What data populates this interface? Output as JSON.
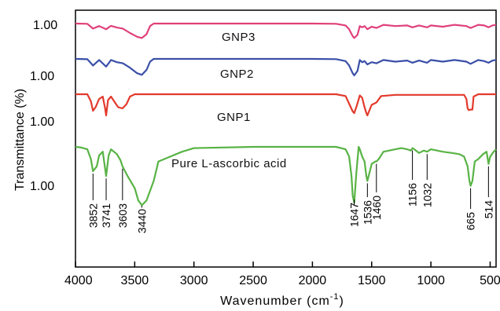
{
  "chart_data": {
    "type": "line",
    "xlabel": "Wavenumber (cm",
    "xlabel_sup": "-1",
    "xlabel_close": ")",
    "ylabel": "Transmittance (%)",
    "xlim": [
      4000,
      450
    ],
    "x_ticks": [
      4000,
      3500,
      3000,
      2500,
      2000,
      1500,
      1000,
      500
    ],
    "x_tick_labels": [
      "4000",
      "3500",
      "3000",
      "2500",
      "2000",
      "1500",
      "1000",
      "500"
    ],
    "y_level_labels": [
      "1.00",
      "1.00",
      "1.00",
      "1.00"
    ],
    "grid": false,
    "legend": "none",
    "series": [
      {
        "name": "GNP3",
        "color": "#e0407a",
        "x": [
          4000,
          3900,
          3852,
          3800,
          3741,
          3700,
          3650,
          3600,
          3540,
          3480,
          3440,
          3400,
          3370,
          3340,
          3300,
          3200,
          3000,
          2500,
          2000,
          1800,
          1720,
          1690,
          1660,
          1647,
          1620,
          1600,
          1580,
          1560,
          1536,
          1500,
          1460,
          1400,
          1300,
          1200,
          1156,
          1100,
          1032,
          1000,
          900,
          800,
          700,
          665,
          600,
          550,
          514,
          480,
          450
        ],
        "y": [
          0.0,
          -0.02,
          -0.4,
          -0.2,
          -0.45,
          -0.18,
          -0.32,
          -0.4,
          -0.75,
          -1.05,
          -1.15,
          -0.85,
          -0.2,
          0.0,
          0.0,
          0.0,
          0.0,
          0.0,
          0.0,
          -0.02,
          -0.15,
          -0.45,
          -1.0,
          -1.15,
          -0.9,
          -0.2,
          -0.3,
          -0.2,
          -0.45,
          -0.25,
          -0.35,
          -0.1,
          -0.2,
          -0.15,
          -0.3,
          -0.15,
          -0.3,
          -0.15,
          -0.25,
          -0.1,
          -0.2,
          -0.35,
          -0.1,
          -0.15,
          -0.3,
          -0.15,
          -0.1
        ]
      },
      {
        "name": "GNP2",
        "color": "#3a4fa8",
        "x": [
          4000,
          3900,
          3852,
          3800,
          3741,
          3700,
          3650,
          3600,
          3540,
          3480,
          3440,
          3400,
          3370,
          3340,
          3300,
          3200,
          3000,
          2500,
          2000,
          1800,
          1720,
          1690,
          1660,
          1647,
          1620,
          1600,
          1580,
          1560,
          1536,
          1500,
          1460,
          1400,
          1300,
          1200,
          1156,
          1100,
          1032,
          1000,
          900,
          800,
          700,
          665,
          600,
          550,
          514,
          480,
          450
        ],
        "y": [
          0.0,
          -0.03,
          -0.6,
          -0.1,
          -0.7,
          -0.1,
          -0.3,
          -0.4,
          -0.8,
          -1.3,
          -1.45,
          -1.0,
          -0.25,
          0.0,
          0.0,
          0.0,
          0.0,
          0.0,
          0.0,
          -0.02,
          -0.2,
          -0.6,
          -1.3,
          -1.5,
          -1.1,
          -0.1,
          -0.3,
          -0.2,
          -0.5,
          -0.3,
          -0.4,
          -0.1,
          -0.25,
          -0.15,
          -0.35,
          -0.15,
          -0.35,
          -0.1,
          -0.25,
          -0.1,
          -0.25,
          -0.45,
          -0.1,
          -0.2,
          -0.35,
          -0.15,
          -0.1
        ]
      },
      {
        "name": "GNP1",
        "color": "#e23a2c",
        "x": [
          4000,
          3900,
          3870,
          3852,
          3830,
          3800,
          3770,
          3750,
          3741,
          3725,
          3700,
          3660,
          3640,
          3603,
          3570,
          3540,
          3500,
          3400,
          3000,
          2500,
          2000,
          1800,
          1720,
          1690,
          1660,
          1647,
          1625,
          1600,
          1580,
          1560,
          1545,
          1536,
          1520,
          1500,
          1460,
          1420,
          1300,
          1156,
          1032,
          900,
          720,
          700,
          690,
          680,
          665,
          650,
          640,
          600,
          514,
          450
        ],
        "y": [
          0.0,
          0.0,
          -0.6,
          -1.4,
          -1.1,
          -0.4,
          -0.2,
          -1.2,
          -1.8,
          -0.5,
          -0.2,
          -0.8,
          -1.1,
          -1.2,
          -0.85,
          -0.2,
          0.0,
          0.0,
          0.0,
          0.0,
          0.0,
          0.0,
          -0.15,
          -0.8,
          -1.45,
          -1.6,
          -0.95,
          -0.1,
          -0.3,
          -1.1,
          -1.6,
          -1.8,
          -1.4,
          -0.9,
          -0.7,
          -0.15,
          -0.05,
          -0.05,
          -0.05,
          -0.05,
          -0.05,
          -0.4,
          -1.2,
          -1.35,
          -1.3,
          -1.3,
          -0.2,
          0.0,
          0.0,
          0.0
        ]
      },
      {
        "name": "Pure L-ascorbic acid",
        "color": "#58b345",
        "x": [
          4000,
          3950,
          3900,
          3870,
          3852,
          3820,
          3800,
          3770,
          3741,
          3720,
          3700,
          3650,
          3620,
          3603,
          3560,
          3500,
          3470,
          3440,
          3400,
          3340,
          3300,
          3200,
          3100,
          3000,
          2500,
          2000,
          1800,
          1720,
          1690,
          1670,
          1660,
          1647,
          1630,
          1610,
          1600,
          1580,
          1560,
          1545,
          1536,
          1520,
          1500,
          1470,
          1460,
          1440,
          1400,
          1300,
          1250,
          1200,
          1170,
          1156,
          1140,
          1100,
          1060,
          1032,
          1000,
          900,
          820,
          760,
          720,
          690,
          675,
          665,
          650,
          630,
          600,
          560,
          530,
          514,
          500,
          470,
          450
        ],
        "y": [
          0.0,
          -0.03,
          -0.1,
          -0.5,
          -1.0,
          -0.8,
          -0.35,
          -0.2,
          -1.2,
          -0.35,
          -0.1,
          -0.3,
          -0.55,
          -0.8,
          -1.2,
          -1.7,
          -2.2,
          -2.4,
          -2.2,
          -1.4,
          -0.6,
          -0.4,
          -0.2,
          -0.05,
          0.0,
          0.0,
          0.0,
          -0.1,
          -0.4,
          -1.2,
          -2.0,
          -2.3,
          -1.1,
          0.0,
          -0.1,
          -0.4,
          -0.6,
          -1.2,
          -1.4,
          -1.1,
          -0.7,
          -0.6,
          -0.6,
          -0.5,
          -0.2,
          -0.1,
          -0.05,
          -0.1,
          -0.15,
          -0.05,
          -0.1,
          -0.25,
          -0.15,
          -0.2,
          -0.1,
          -0.2,
          -0.25,
          -0.3,
          -0.4,
          -0.8,
          -1.4,
          -1.6,
          -1.4,
          -0.6,
          -0.5,
          -0.3,
          -0.2,
          -0.7,
          -0.4,
          -0.2,
          -0.1
        ]
      }
    ],
    "peak_labels": [
      "3852",
      "3741",
      "3603",
      "3440",
      "1647",
      "1536",
      "1460",
      "1156",
      "1032",
      "665",
      "514"
    ]
  }
}
